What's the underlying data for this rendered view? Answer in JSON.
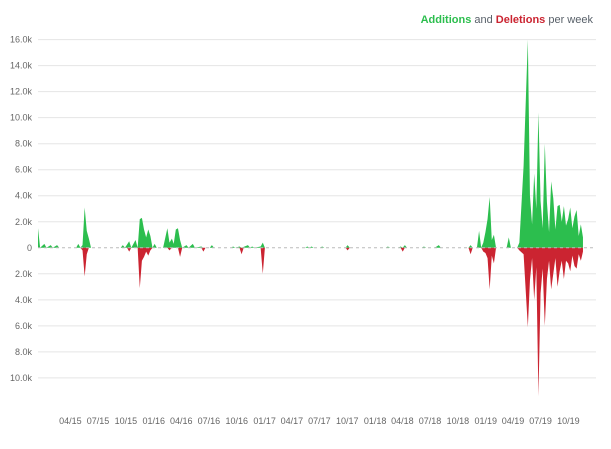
{
  "legend": {
    "additions_label": "Additions",
    "and_text": " and ",
    "deletions_label": "Deletions",
    "per_week_text": " per week"
  },
  "chart_data": {
    "type": "area",
    "title": "",
    "xlabel": "",
    "ylabel": "",
    "grid": true,
    "legend_position": "top-right",
    "colors": {
      "additions": "#2cbe4e",
      "deletions": "#cb2431",
      "grid": "#e5e5e5",
      "tick_text": "#666666"
    },
    "y_ticks": [
      {
        "value": 16000,
        "label": "16.0k"
      },
      {
        "value": 14000,
        "label": "14.0k"
      },
      {
        "value": 12000,
        "label": "12.0k"
      },
      {
        "value": 10000,
        "label": "10.0k"
      },
      {
        "value": 8000,
        "label": "8.0k"
      },
      {
        "value": 6000,
        "label": "6.0k"
      },
      {
        "value": 4000,
        "label": "4.0k"
      },
      {
        "value": 2000,
        "label": "2.0k"
      },
      {
        "value": 0,
        "label": "0"
      },
      {
        "value": -2000,
        "label": "2.0k"
      },
      {
        "value": -4000,
        "label": "4.0k"
      },
      {
        "value": -6000,
        "label": "6.0k"
      },
      {
        "value": -8000,
        "label": "8.0k"
      },
      {
        "value": -10000,
        "label": "10.0k"
      }
    ],
    "ylim": [
      -11700,
      16200
    ],
    "x_ticks": [
      {
        "date": "2015-04-01",
        "label": "04/15"
      },
      {
        "date": "2015-07-01",
        "label": "07/15"
      },
      {
        "date": "2015-10-01",
        "label": "10/15"
      },
      {
        "date": "2016-01-01",
        "label": "01/16"
      },
      {
        "date": "2016-04-01",
        "label": "04/16"
      },
      {
        "date": "2016-07-01",
        "label": "07/16"
      },
      {
        "date": "2016-10-01",
        "label": "10/16"
      },
      {
        "date": "2017-01-01",
        "label": "01/17"
      },
      {
        "date": "2017-04-01",
        "label": "04/17"
      },
      {
        "date": "2017-07-01",
        "label": "07/17"
      },
      {
        "date": "2017-10-01",
        "label": "10/17"
      },
      {
        "date": "2018-01-01",
        "label": "01/18"
      },
      {
        "date": "2018-04-01",
        "label": "04/18"
      },
      {
        "date": "2018-07-01",
        "label": "07/18"
      },
      {
        "date": "2018-10-01",
        "label": "10/18"
      },
      {
        "date": "2019-01-01",
        "label": "01/19"
      },
      {
        "date": "2019-04-01",
        "label": "04/19"
      },
      {
        "date": "2019-07-01",
        "label": "07/19"
      },
      {
        "date": "2019-10-01",
        "label": "10/19"
      }
    ],
    "xlim": [
      "2014-12-15",
      "2019-12-31"
    ],
    "series": [
      {
        "name": "Additions",
        "points": [
          [
            "2014-12-15",
            1500
          ],
          [
            "2014-12-22",
            0
          ],
          [
            "2015-01-05",
            300
          ],
          [
            "2015-01-12",
            0
          ],
          [
            "2015-01-26",
            200
          ],
          [
            "2015-02-02",
            0
          ],
          [
            "2015-02-16",
            200
          ],
          [
            "2015-02-23",
            0
          ],
          [
            "2015-04-20",
            0
          ],
          [
            "2015-04-27",
            300
          ],
          [
            "2015-05-04",
            0
          ],
          [
            "2015-05-11",
            200
          ],
          [
            "2015-05-18",
            3100
          ],
          [
            "2015-05-25",
            1300
          ],
          [
            "2015-06-01",
            700
          ],
          [
            "2015-06-08",
            0
          ],
          [
            "2015-09-14",
            0
          ],
          [
            "2015-09-21",
            200
          ],
          [
            "2015-09-28",
            0
          ],
          [
            "2015-10-12",
            500
          ],
          [
            "2015-10-19",
            0
          ],
          [
            "2015-11-02",
            600
          ],
          [
            "2015-11-09",
            0
          ],
          [
            "2015-11-16",
            2200
          ],
          [
            "2015-11-23",
            2300
          ],
          [
            "2015-11-30",
            1400
          ],
          [
            "2015-12-07",
            800
          ],
          [
            "2015-12-14",
            1400
          ],
          [
            "2015-12-21",
            900
          ],
          [
            "2015-12-28",
            0
          ],
          [
            "2016-01-04",
            300
          ],
          [
            "2016-01-11",
            0
          ],
          [
            "2016-02-01",
            0
          ],
          [
            "2016-02-15",
            1500
          ],
          [
            "2016-02-22",
            400
          ],
          [
            "2016-03-01",
            700
          ],
          [
            "2016-03-07",
            300
          ],
          [
            "2016-03-14",
            1400
          ],
          [
            "2016-03-21",
            1500
          ],
          [
            "2016-03-28",
            600
          ],
          [
            "2016-04-04",
            0
          ],
          [
            "2016-04-18",
            200
          ],
          [
            "2016-04-25",
            0
          ],
          [
            "2016-05-09",
            300
          ],
          [
            "2016-05-16",
            0
          ],
          [
            "2016-06-06",
            100
          ],
          [
            "2016-06-13",
            0
          ],
          [
            "2016-07-04",
            0
          ],
          [
            "2016-07-11",
            200
          ],
          [
            "2016-07-18",
            0
          ],
          [
            "2016-09-12",
            0
          ],
          [
            "2016-09-19",
            100
          ],
          [
            "2016-09-26",
            0
          ],
          [
            "2016-10-10",
            100
          ],
          [
            "2016-10-17",
            0
          ],
          [
            "2016-11-07",
            200
          ],
          [
            "2016-11-14",
            0
          ],
          [
            "2016-11-21",
            100
          ],
          [
            "2016-11-28",
            0
          ],
          [
            "2016-12-19",
            100
          ],
          [
            "2016-12-26",
            400
          ],
          [
            "2017-01-02",
            0
          ],
          [
            "2017-05-15",
            0
          ],
          [
            "2017-05-22",
            100
          ],
          [
            "2017-05-29",
            0
          ],
          [
            "2017-06-05",
            100
          ],
          [
            "2017-06-12",
            0
          ],
          [
            "2017-07-03",
            0
          ],
          [
            "2017-07-10",
            100
          ],
          [
            "2017-07-17",
            0
          ],
          [
            "2017-09-25",
            0
          ],
          [
            "2017-10-02",
            200
          ],
          [
            "2017-10-09",
            0
          ],
          [
            "2018-02-05",
            0
          ],
          [
            "2018-02-12",
            100
          ],
          [
            "2018-02-19",
            0
          ],
          [
            "2018-03-19",
            0
          ],
          [
            "2018-03-26",
            100
          ],
          [
            "2018-04-02",
            0
          ],
          [
            "2018-04-09",
            200
          ],
          [
            "2018-04-16",
            0
          ],
          [
            "2018-06-04",
            0
          ],
          [
            "2018-06-11",
            100
          ],
          [
            "2018-06-18",
            0
          ],
          [
            "2018-07-16",
            0
          ],
          [
            "2018-07-23",
            100
          ],
          [
            "2018-07-30",
            200
          ],
          [
            "2018-08-06",
            0
          ],
          [
            "2018-11-05",
            0
          ],
          [
            "2018-11-12",
            200
          ],
          [
            "2018-11-19",
            0
          ],
          [
            "2018-12-03",
            0
          ],
          [
            "2018-12-10",
            1300
          ],
          [
            "2018-12-17",
            0
          ],
          [
            "2018-12-24",
            400
          ],
          [
            "2018-12-31",
            1200
          ],
          [
            "2019-01-07",
            2200
          ],
          [
            "2019-01-14",
            3900
          ],
          [
            "2019-01-21",
            600
          ],
          [
            "2019-01-28",
            1000
          ],
          [
            "2019-02-04",
            0
          ],
          [
            "2019-03-11",
            0
          ],
          [
            "2019-03-18",
            800
          ],
          [
            "2019-03-25",
            0
          ],
          [
            "2019-04-15",
            0
          ],
          [
            "2019-04-22",
            400
          ],
          [
            "2019-05-06",
            6300
          ],
          [
            "2019-05-20",
            16000
          ],
          [
            "2019-05-27",
            4000
          ],
          [
            "2019-06-03",
            1800
          ],
          [
            "2019-06-10",
            5700
          ],
          [
            "2019-06-17",
            3000
          ],
          [
            "2019-06-24",
            10400
          ],
          [
            "2019-07-01",
            3600
          ],
          [
            "2019-07-08",
            1500
          ],
          [
            "2019-07-15",
            8000
          ],
          [
            "2019-07-22",
            3500
          ],
          [
            "2019-07-29",
            1200
          ],
          [
            "2019-08-05",
            5100
          ],
          [
            "2019-08-12",
            3800
          ],
          [
            "2019-08-19",
            1400
          ],
          [
            "2019-08-26",
            3200
          ],
          [
            "2019-09-02",
            3300
          ],
          [
            "2019-09-09",
            2000
          ],
          [
            "2019-09-16",
            3200
          ],
          [
            "2019-09-23",
            1700
          ],
          [
            "2019-09-30",
            2200
          ],
          [
            "2019-10-07",
            3100
          ],
          [
            "2019-10-14",
            1500
          ],
          [
            "2019-10-21",
            2400
          ],
          [
            "2019-10-28",
            2900
          ],
          [
            "2019-11-04",
            900
          ],
          [
            "2019-11-11",
            1800
          ],
          [
            "2019-11-18",
            800
          ]
        ]
      },
      {
        "name": "Deletions",
        "points": [
          [
            "2015-05-04",
            0
          ],
          [
            "2015-05-11",
            -200
          ],
          [
            "2015-05-18",
            -2200
          ],
          [
            "2015-05-25",
            -500
          ],
          [
            "2015-06-01",
            0
          ],
          [
            "2015-10-05",
            0
          ],
          [
            "2015-10-12",
            -300
          ],
          [
            "2015-10-19",
            0
          ],
          [
            "2015-11-09",
            0
          ],
          [
            "2015-11-16",
            -3100
          ],
          [
            "2015-11-23",
            -1000
          ],
          [
            "2015-11-30",
            -700
          ],
          [
            "2015-12-07",
            -300
          ],
          [
            "2015-12-14",
            -600
          ],
          [
            "2015-12-21",
            -200
          ],
          [
            "2015-12-28",
            0
          ],
          [
            "2016-02-15",
            0
          ],
          [
            "2016-02-22",
            -200
          ],
          [
            "2016-03-01",
            0
          ],
          [
            "2016-03-21",
            0
          ],
          [
            "2016-03-28",
            -700
          ],
          [
            "2016-04-04",
            0
          ],
          [
            "2016-06-06",
            0
          ],
          [
            "2016-06-13",
            -300
          ],
          [
            "2016-06-20",
            0
          ],
          [
            "2016-10-10",
            0
          ],
          [
            "2016-10-17",
            -500
          ],
          [
            "2016-10-24",
            0
          ],
          [
            "2016-12-19",
            0
          ],
          [
            "2016-12-26",
            -2000
          ],
          [
            "2017-01-02",
            0
          ],
          [
            "2017-09-25",
            0
          ],
          [
            "2017-10-02",
            -200
          ],
          [
            "2017-10-09",
            0
          ],
          [
            "2018-03-26",
            0
          ],
          [
            "2018-04-02",
            -300
          ],
          [
            "2018-04-09",
            0
          ],
          [
            "2018-11-05",
            0
          ],
          [
            "2018-11-12",
            -500
          ],
          [
            "2018-11-19",
            0
          ],
          [
            "2018-12-17",
            0
          ],
          [
            "2018-12-24",
            -300
          ],
          [
            "2018-12-31",
            -400
          ],
          [
            "2019-01-07",
            -800
          ],
          [
            "2019-01-14",
            -3200
          ],
          [
            "2019-01-21",
            -600
          ],
          [
            "2019-01-28",
            -1200
          ],
          [
            "2019-02-04",
            0
          ],
          [
            "2019-04-15",
            0
          ],
          [
            "2019-04-22",
            -200
          ],
          [
            "2019-05-06",
            -500
          ],
          [
            "2019-05-20",
            -6100
          ],
          [
            "2019-05-27",
            -2500
          ],
          [
            "2019-06-03",
            -800
          ],
          [
            "2019-06-10",
            -4000
          ],
          [
            "2019-06-17",
            -1500
          ],
          [
            "2019-06-24",
            -11400
          ],
          [
            "2019-07-01",
            -3500
          ],
          [
            "2019-07-08",
            -1600
          ],
          [
            "2019-07-15",
            -6000
          ],
          [
            "2019-07-22",
            -2400
          ],
          [
            "2019-07-29",
            -1000
          ],
          [
            "2019-08-05",
            -3200
          ],
          [
            "2019-08-12",
            -2000
          ],
          [
            "2019-08-19",
            -800
          ],
          [
            "2019-08-26",
            -3000
          ],
          [
            "2019-09-02",
            -1800
          ],
          [
            "2019-09-09",
            -1000
          ],
          [
            "2019-09-16",
            -2400
          ],
          [
            "2019-09-23",
            -1000
          ],
          [
            "2019-09-30",
            -1200
          ],
          [
            "2019-10-07",
            -1800
          ],
          [
            "2019-10-14",
            -600
          ],
          [
            "2019-10-21",
            -1400
          ],
          [
            "2019-10-28",
            -1600
          ],
          [
            "2019-11-04",
            -500
          ],
          [
            "2019-11-11",
            -1000
          ],
          [
            "2019-11-18",
            -300
          ]
        ]
      }
    ]
  }
}
